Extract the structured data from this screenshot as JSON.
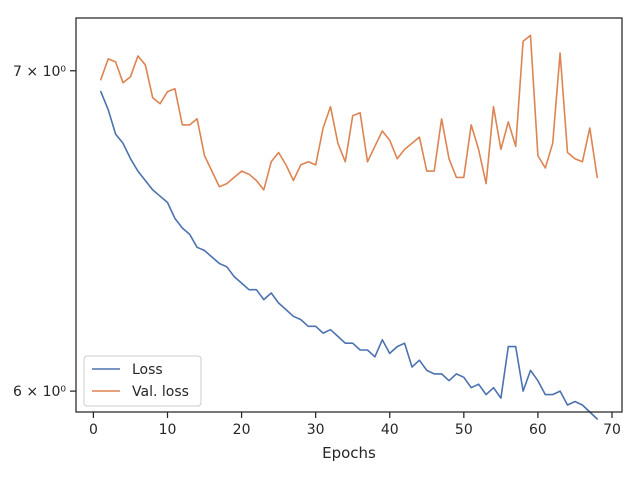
{
  "chart_data": {
    "type": "line",
    "title": "",
    "xlabel": "Epochs",
    "ylabel": "",
    "yscale": "log",
    "xlim": [
      -2.35,
      71.35
    ],
    "ylim": [
      5.94,
      7.18
    ],
    "xticks": [
      0,
      10,
      20,
      30,
      40,
      50,
      60,
      70
    ],
    "xtick_labels": [
      "0",
      "10",
      "20",
      "30",
      "40",
      "50",
      "60",
      "70"
    ],
    "yticks": [
      6,
      7
    ],
    "ytick_labels": [
      "6 × 10⁰",
      "7 × 10⁰"
    ],
    "legend": {
      "position": "lower-left",
      "entries": [
        "Loss",
        "Val. loss"
      ]
    },
    "grid": false,
    "series": [
      {
        "name": "Loss",
        "color": "#4c72b0",
        "x": [
          1,
          2,
          3,
          4,
          5,
          6,
          7,
          8,
          9,
          10,
          11,
          12,
          13,
          14,
          15,
          16,
          17,
          18,
          19,
          20,
          21,
          22,
          23,
          24,
          25,
          26,
          27,
          28,
          29,
          30,
          31,
          32,
          33,
          34,
          35,
          36,
          37,
          38,
          39,
          40,
          41,
          42,
          43,
          44,
          45,
          46,
          47,
          48,
          49,
          50,
          51,
          52,
          53,
          54,
          55,
          56,
          57,
          58,
          59,
          60,
          61,
          62,
          63,
          64,
          65,
          66,
          67,
          68
        ],
        "values": [
          6.93,
          6.87,
          6.79,
          6.76,
          6.71,
          6.67,
          6.64,
          6.61,
          6.59,
          6.57,
          6.52,
          6.49,
          6.47,
          6.43,
          6.42,
          6.4,
          6.38,
          6.37,
          6.34,
          6.32,
          6.3,
          6.3,
          6.27,
          6.29,
          6.26,
          6.24,
          6.22,
          6.21,
          6.19,
          6.19,
          6.17,
          6.18,
          6.16,
          6.14,
          6.14,
          6.12,
          6.12,
          6.1,
          6.15,
          6.11,
          6.13,
          6.14,
          6.07,
          6.09,
          6.06,
          6.05,
          6.05,
          6.03,
          6.05,
          6.04,
          6.01,
          6.02,
          5.99,
          6.01,
          5.98,
          6.13,
          6.13,
          6.0,
          6.06,
          6.03,
          5.99,
          5.99,
          6.0,
          5.96,
          5.97,
          5.96,
          5.94,
          5.92
        ]
      },
      {
        "name": "Val. loss",
        "color": "#dd8452",
        "x": [
          1,
          2,
          3,
          4,
          5,
          6,
          7,
          8,
          9,
          10,
          11,
          12,
          13,
          14,
          15,
          16,
          17,
          18,
          19,
          20,
          21,
          22,
          23,
          24,
          25,
          26,
          27,
          28,
          29,
          30,
          31,
          32,
          33,
          34,
          35,
          36,
          37,
          38,
          39,
          40,
          41,
          42,
          43,
          44,
          45,
          46,
          47,
          48,
          49,
          50,
          51,
          52,
          53,
          54,
          55,
          56,
          57,
          58,
          59,
          60,
          61,
          62,
          63,
          64,
          65,
          66,
          67,
          68
        ],
        "values": [
          6.97,
          7.04,
          7.03,
          6.96,
          6.98,
          7.05,
          7.02,
          6.91,
          6.89,
          6.93,
          6.94,
          6.82,
          6.82,
          6.84,
          6.72,
          6.67,
          6.62,
          6.63,
          6.65,
          6.67,
          6.66,
          6.64,
          6.61,
          6.7,
          6.73,
          6.69,
          6.64,
          6.69,
          6.7,
          6.69,
          6.81,
          6.88,
          6.76,
          6.7,
          6.85,
          6.86,
          6.7,
          6.75,
          6.8,
          6.77,
          6.71,
          6.74,
          6.76,
          6.78,
          6.67,
          6.67,
          6.84,
          6.71,
          6.65,
          6.65,
          6.82,
          6.74,
          6.63,
          6.88,
          6.74,
          6.83,
          6.75,
          7.1,
          7.12,
          6.72,
          6.68,
          6.76,
          7.06,
          6.73,
          6.71,
          6.7,
          6.81,
          6.65
        ]
      }
    ]
  }
}
